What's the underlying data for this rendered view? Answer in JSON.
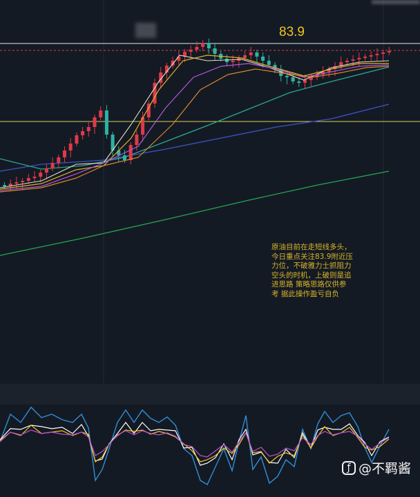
{
  "chart_data": {
    "type": "candlestick",
    "resistance_level": "83.9",
    "note": "原油目前在走短线多头，今日重点关注83.9附近压力位，不破雅力士抓阻力空头的时机，上破则是追进思路 策略思路仅供参考 据此操作盈亏自负",
    "watermark": "@不羁酱",
    "colors": {
      "background": "#141a24",
      "up": "#e0394a",
      "down": "#2fb2a2",
      "ma_fast": "#e8e2c8",
      "ma_yellow": "#e3b32c",
      "ma_magenta": "#b458d8",
      "ma_orange": "#d9862c",
      "ma_teal": "#2aa892",
      "ma_blue": "#3e53c9",
      "ma_green": "#26a653",
      "level_line": "#d8d15a",
      "resistance_line": "#e8e8e8",
      "kdj_k": "#ffffff",
      "kdj_d": "#f2c62a",
      "kdj_j": "#2f8fd8",
      "kdj_4": "#c050d0"
    }
  }
}
